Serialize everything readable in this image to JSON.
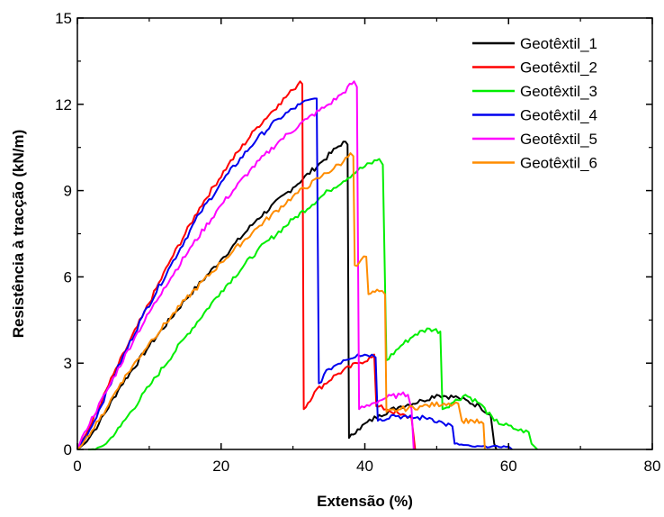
{
  "chart_data": {
    "type": "line",
    "xlabel": "Extensão (%)",
    "ylabel": "Resistência à tracção (kN/m)",
    "xlim": [
      0,
      80
    ],
    "ylim": [
      0,
      15
    ],
    "x_ticks": [
      0,
      20,
      40,
      60,
      80
    ],
    "y_ticks": [
      0,
      3,
      6,
      9,
      12,
      15
    ],
    "grid": false,
    "legend_position": "top-right",
    "series": [
      {
        "name": "Geotêxtil_1",
        "color": "#000000",
        "points": [
          [
            0,
            0
          ],
          [
            1,
            0.2
          ],
          [
            3,
            0.9
          ],
          [
            6,
            2.2
          ],
          [
            10,
            3.6
          ],
          [
            15,
            5.2
          ],
          [
            20,
            6.6
          ],
          [
            25,
            8.0
          ],
          [
            30,
            9.1
          ],
          [
            34,
            10.0
          ],
          [
            37,
            10.7
          ],
          [
            37.6,
            10.6
          ],
          [
            37.8,
            0.4
          ],
          [
            39,
            0.7
          ],
          [
            42,
            1.2
          ],
          [
            45,
            1.5
          ],
          [
            48,
            1.7
          ],
          [
            50,
            1.9
          ],
          [
            53,
            1.8
          ],
          [
            56,
            1.5
          ],
          [
            57.5,
            1.2
          ],
          [
            58,
            0.2
          ],
          [
            58.3,
            0
          ]
        ]
      },
      {
        "name": "Geotêxtil_2",
        "color": "#ff0000",
        "points": [
          [
            0,
            0
          ],
          [
            2,
            0.9
          ],
          [
            5,
            2.6
          ],
          [
            9,
            4.6
          ],
          [
            13,
            6.6
          ],
          [
            17,
            8.4
          ],
          [
            21,
            9.9
          ],
          [
            25,
            11.2
          ],
          [
            28,
            12.0
          ],
          [
            30,
            12.5
          ],
          [
            31,
            12.8
          ],
          [
            31.3,
            12.7
          ],
          [
            31.5,
            1.4
          ],
          [
            33,
            2.0
          ],
          [
            36,
            2.6
          ],
          [
            39,
            3.0
          ],
          [
            41,
            3.2
          ],
          [
            41.3,
            3.3
          ],
          [
            41.6,
            1.5
          ],
          [
            43,
            1.4
          ],
          [
            45,
            1.2
          ],
          [
            46.5,
            1.1
          ],
          [
            47,
            0
          ]
        ]
      },
      {
        "name": "Geotêxtil_3",
        "color": "#00ee00",
        "points": [
          [
            1.5,
            0
          ],
          [
            2.5,
            0
          ],
          [
            4,
            0.2
          ],
          [
            6,
            0.8
          ],
          [
            10,
            2.2
          ],
          [
            15,
            3.9
          ],
          [
            20,
            5.5
          ],
          [
            25,
            6.9
          ],
          [
            30,
            8.0
          ],
          [
            35,
            9.0
          ],
          [
            39,
            9.7
          ],
          [
            42,
            10.1
          ],
          [
            42.5,
            9.9
          ],
          [
            43,
            3.1
          ],
          [
            45,
            3.6
          ],
          [
            47,
            4.0
          ],
          [
            49,
            4.2
          ],
          [
            50.5,
            4.1
          ],
          [
            50.8,
            1.4
          ],
          [
            52,
            1.6
          ],
          [
            54,
            1.9
          ],
          [
            56,
            1.6
          ],
          [
            58,
            1.0
          ],
          [
            61,
            0.7
          ],
          [
            62.8,
            0.6
          ],
          [
            63.2,
            0.2
          ],
          [
            64,
            0
          ]
        ]
      },
      {
        "name": "Geotêxtil_4",
        "color": "#0000ee",
        "points": [
          [
            0,
            0
          ],
          [
            2,
            0.8
          ],
          [
            5,
            2.5
          ],
          [
            9,
            4.6
          ],
          [
            13,
            6.4
          ],
          [
            17,
            8.2
          ],
          [
            21,
            9.6
          ],
          [
            25,
            10.8
          ],
          [
            28,
            11.5
          ],
          [
            31,
            12.0
          ],
          [
            33,
            12.2
          ],
          [
            33.3,
            12.2
          ],
          [
            33.6,
            2.3
          ],
          [
            35,
            2.8
          ],
          [
            37,
            3.1
          ],
          [
            39,
            3.3
          ],
          [
            41,
            3.3
          ],
          [
            41.5,
            3.2
          ],
          [
            41.8,
            1.0
          ],
          [
            44,
            1.2
          ],
          [
            46,
            1.1
          ],
          [
            49,
            1.1
          ],
          [
            51,
            0.9
          ],
          [
            52.2,
            0.8
          ],
          [
            52.5,
            0.2
          ],
          [
            55,
            0.1
          ],
          [
            60,
            0.1
          ],
          [
            60.5,
            0
          ]
        ]
      },
      {
        "name": "Geotêxtil_5",
        "color": "#ff00ff",
        "points": [
          [
            0,
            0
          ],
          [
            1,
            0.6
          ],
          [
            4,
            2.0
          ],
          [
            8,
            3.9
          ],
          [
            12,
            5.6
          ],
          [
            16,
            7.1
          ],
          [
            20,
            8.5
          ],
          [
            24,
            9.7
          ],
          [
            28,
            10.7
          ],
          [
            32,
            11.5
          ],
          [
            35,
            12.0
          ],
          [
            37,
            12.4
          ],
          [
            38.5,
            12.8
          ],
          [
            38.9,
            12.6
          ],
          [
            39.2,
            1.4
          ],
          [
            41,
            1.6
          ],
          [
            43,
            1.8
          ],
          [
            45,
            1.9
          ],
          [
            46,
            1.9
          ],
          [
            46.5,
            1.4
          ],
          [
            46.8,
            0
          ]
        ]
      },
      {
        "name": "Geotêxtil_6",
        "color": "#ff8c00",
        "points": [
          [
            0,
            0
          ],
          [
            1,
            0.3
          ],
          [
            3,
            1.0
          ],
          [
            6,
            2.3
          ],
          [
            10,
            3.7
          ],
          [
            15,
            5.2
          ],
          [
            20,
            6.5
          ],
          [
            25,
            7.7
          ],
          [
            30,
            8.8
          ],
          [
            34,
            9.5
          ],
          [
            37,
            10.0
          ],
          [
            38,
            10.3
          ],
          [
            38.4,
            10.2
          ],
          [
            38.6,
            6.4
          ],
          [
            39.5,
            6.6
          ],
          [
            40.2,
            6.7
          ],
          [
            40.5,
            5.4
          ],
          [
            42,
            5.5
          ],
          [
            42.8,
            5.4
          ],
          [
            43,
            1.3
          ],
          [
            45,
            1.4
          ],
          [
            48,
            1.5
          ],
          [
            51,
            1.6
          ],
          [
            53,
            1.6
          ],
          [
            53.5,
            1.0
          ],
          [
            55,
            1.0
          ],
          [
            56.5,
            0.9
          ],
          [
            56.7,
            0
          ]
        ]
      }
    ]
  }
}
